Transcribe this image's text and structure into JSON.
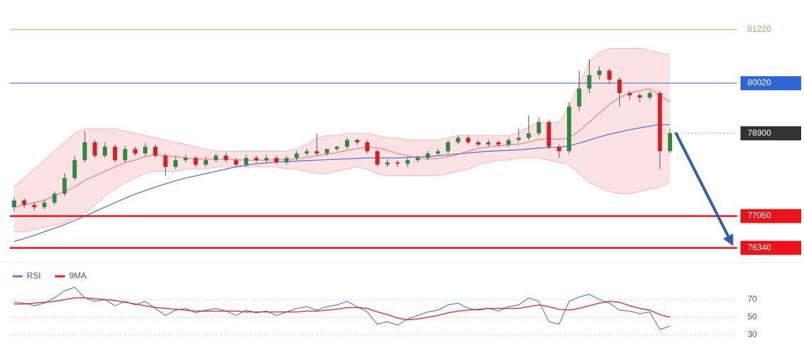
{
  "chart_data": [
    {
      "type": "candlestick",
      "ylim": [
        76050,
        81880
      ],
      "up_color": "#2e8b3e",
      "down_color": "#d42020",
      "open": [
        77250,
        77400,
        77300,
        77250,
        77350,
        77550,
        77900,
        78300,
        78700,
        78400,
        78600,
        78300,
        78550,
        78450,
        78600,
        78400,
        78150,
        78300,
        78350,
        78200,
        78300,
        78400,
        78300,
        78200,
        78350,
        78300,
        78350,
        78250,
        78350,
        78450,
        78500,
        78450,
        78550,
        78600,
        78750,
        78700,
        78500,
        78200,
        78250,
        78220,
        78300,
        78350,
        78450,
        78500,
        78700,
        78800,
        78700,
        78650,
        78700,
        78650,
        78750,
        78800,
        78900,
        79150,
        78600,
        78500,
        79500,
        79900,
        80200,
        80300,
        80100,
        79800,
        79750,
        79700,
        79800,
        78500
      ],
      "high": [
        77480,
        77450,
        77350,
        77420,
        77600,
        78000,
        78400,
        78950,
        78750,
        78700,
        78650,
        78620,
        78600,
        78680,
        78650,
        78450,
        78380,
        78420,
        78400,
        78380,
        78450,
        78460,
        78350,
        78420,
        78400,
        78420,
        78400,
        78400,
        78500,
        78560,
        78900,
        78520,
        78620,
        78800,
        78780,
        78750,
        78550,
        78320,
        78300,
        78360,
        78400,
        78500,
        78560,
        78750,
        78850,
        78850,
        78750,
        78760,
        78750,
        78800,
        79000,
        79300,
        79250,
        79200,
        78650,
        79600,
        80300,
        80550,
        80400,
        80350,
        80150,
        79850,
        79800,
        79850,
        79850,
        79000
      ],
      "low": [
        77150,
        77220,
        77180,
        77200,
        77300,
        77500,
        77850,
        78250,
        78350,
        78350,
        78250,
        78250,
        78400,
        78400,
        78350,
        77950,
        78100,
        78250,
        78150,
        78150,
        78250,
        78250,
        78150,
        78150,
        78250,
        78250,
        78200,
        78200,
        78300,
        78400,
        78400,
        78400,
        78500,
        78550,
        78650,
        78450,
        78150,
        78150,
        78150,
        78150,
        78250,
        78300,
        78400,
        78450,
        78650,
        78650,
        78600,
        78600,
        78600,
        78600,
        78700,
        78750,
        78850,
        78550,
        78350,
        78450,
        79400,
        79800,
        80100,
        80000,
        79500,
        79650,
        79600,
        79650,
        78100,
        78450
      ],
      "close": [
        77400,
        77300,
        77250,
        77350,
        77550,
        77900,
        78300,
        78700,
        78400,
        78600,
        78300,
        78550,
        78450,
        78600,
        78400,
        78150,
        78300,
        78350,
        78200,
        78300,
        78400,
        78300,
        78200,
        78350,
        78300,
        78350,
        78250,
        78350,
        78450,
        78500,
        78450,
        78550,
        78600,
        78750,
        78700,
        78500,
        78200,
        78250,
        78220,
        78300,
        78350,
        78450,
        78500,
        78700,
        78800,
        78700,
        78650,
        78700,
        78650,
        78750,
        78800,
        78900,
        79150,
        78600,
        78500,
        79500,
        79900,
        80200,
        80300,
        80100,
        79800,
        79750,
        79700,
        79800,
        78500,
        78900
      ],
      "ma_fast": {
        "color": "#f08080",
        "values": [
          77250,
          77300,
          77350,
          77400,
          77500,
          77600,
          77700,
          77850,
          77950,
          78050,
          78150,
          78250,
          78300,
          78380,
          78420,
          78400,
          78380,
          78350,
          78330,
          78320,
          78320,
          78320,
          78310,
          78300,
          78300,
          78300,
          78310,
          78320,
          78330,
          78360,
          78400,
          78430,
          78470,
          78520,
          78560,
          78590,
          78580,
          78520,
          78450,
          78400,
          78350,
          78330,
          78340,
          78380,
          78430,
          78500,
          78560,
          78600,
          78620,
          78640,
          78660,
          78700,
          78760,
          78790,
          78760,
          78800,
          78950,
          79150,
          79350,
          79550,
          79700,
          79800,
          79850,
          79900,
          79750,
          79600
        ]
      },
      "ma_slow": {
        "color": "#4a6fd0",
        "values": [
          76480,
          76550,
          76620,
          76700,
          76780,
          76860,
          76950,
          77050,
          77150,
          77250,
          77350,
          77450,
          77540,
          77620,
          77700,
          77770,
          77840,
          77900,
          77950,
          78000,
          78050,
          78100,
          78150,
          78190,
          78220,
          78240,
          78260,
          78270,
          78280,
          78290,
          78300,
          78310,
          78320,
          78330,
          78340,
          78350,
          78350,
          78350,
          78350,
          78360,
          78370,
          78380,
          78400,
          78420,
          78440,
          78460,
          78480,
          78500,
          78510,
          78520,
          78530,
          78550,
          78570,
          78580,
          78590,
          78620,
          78680,
          78750,
          78820,
          78880,
          78930,
          78980,
          79020,
          79060,
          79100,
          79090
        ]
      },
      "band_upper": [
        77700,
        77900,
        78100,
        78300,
        78500,
        78700,
        78900,
        79000,
        79000,
        79000,
        79000,
        78950,
        78900,
        78850,
        78800,
        78750,
        78700,
        78650,
        78600,
        78550,
        78500,
        78500,
        78500,
        78500,
        78500,
        78500,
        78500,
        78500,
        78550,
        78650,
        78800,
        78850,
        78850,
        78900,
        78900,
        78900,
        78850,
        78800,
        78800,
        78750,
        78750,
        78750,
        78750,
        78800,
        78850,
        78850,
        78850,
        78850,
        78850,
        78850,
        78900,
        79050,
        79150,
        79150,
        79150,
        79500,
        80000,
        80500,
        80700,
        80800,
        80800,
        80800,
        80800,
        80750,
        80700,
        80650
      ],
      "band_lower": [
        76700,
        76700,
        76750,
        76800,
        76850,
        76900,
        77000,
        77100,
        77300,
        77500,
        77650,
        77800,
        77900,
        78000,
        78050,
        78050,
        78050,
        78100,
        78100,
        78100,
        78150,
        78150,
        78150,
        78150,
        78150,
        78150,
        78150,
        78100,
        78100,
        78050,
        78000,
        78000,
        78050,
        78100,
        78150,
        78100,
        78000,
        77950,
        77950,
        77950,
        77950,
        77950,
        77950,
        78000,
        78050,
        78100,
        78200,
        78250,
        78300,
        78300,
        78350,
        78350,
        78350,
        78300,
        78250,
        78200,
        78000,
        77800,
        77700,
        77600,
        77550,
        77550,
        77600,
        77650,
        77700,
        77800
      ],
      "levels": [
        {
          "value": 81220,
          "color": "#7cc46a",
          "style": "plain"
        },
        {
          "value": 80020,
          "color": "#2f66d6",
          "style": "box"
        },
        {
          "value": 78900,
          "color": "#333333",
          "style": "dotted"
        },
        {
          "value": 77050,
          "color": "#e8141a",
          "style": "box"
        },
        {
          "value": 76340,
          "color": "#e8141a",
          "style": "box"
        }
      ]
    },
    {
      "type": "line",
      "ylim": [
        10,
        106
      ],
      "yticks": [
        30,
        50,
        70
      ],
      "series": [
        {
          "name": "RSI",
          "color": "#5b7fe0",
          "values": [
            67,
            66,
            63,
            66,
            72,
            80,
            84,
            72,
            68,
            70,
            63,
            68,
            64,
            68,
            60,
            52,
            58,
            60,
            55,
            58,
            60,
            57,
            52,
            58,
            55,
            57,
            52,
            56,
            60,
            62,
            58,
            62,
            64,
            68,
            62,
            56,
            42,
            45,
            41,
            48,
            52,
            56,
            58,
            64,
            66,
            60,
            58,
            60,
            57,
            62,
            64,
            72,
            68,
            45,
            42,
            68,
            73,
            76,
            70,
            66,
            58,
            57,
            54,
            56,
            36,
            40
          ]
        },
        {
          "name": "9MA",
          "color": "#e02020",
          "values": [
            65,
            65,
            66,
            67,
            68,
            70,
            72,
            72,
            71,
            70,
            69,
            67,
            65,
            63,
            61,
            60,
            59,
            58,
            57,
            57,
            57,
            57,
            57,
            56,
            56,
            56,
            56,
            56,
            56,
            57,
            57,
            58,
            59,
            61,
            61,
            60,
            56,
            53,
            49,
            47,
            48,
            50,
            52,
            55,
            57,
            58,
            59,
            60,
            60,
            60,
            60,
            62,
            64,
            62,
            59,
            58,
            60,
            63,
            66,
            68,
            67,
            63,
            60,
            58,
            53,
            50
          ]
        }
      ]
    }
  ]
}
